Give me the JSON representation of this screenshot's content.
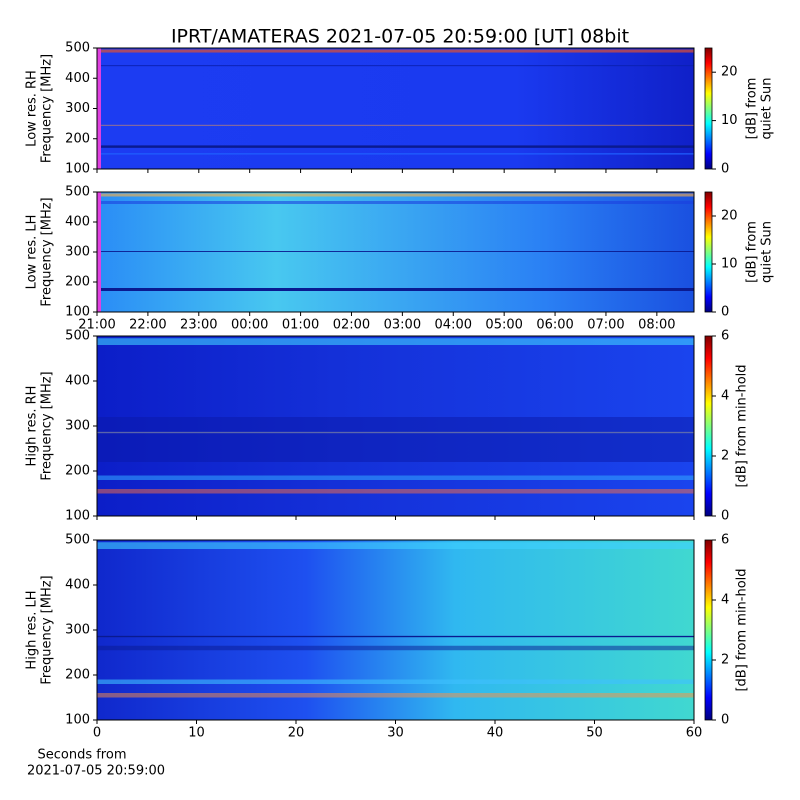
{
  "title": "IPRT/AMATERAS 2021-07-05 20:59:00 [UT]   08bit",
  "chart_data": [
    {
      "type": "heatmap",
      "ylabel": [
        "Low res. RH",
        "Frequency [MHz]"
      ],
      "ylim": [
        100,
        500
      ],
      "yticks": [
        100,
        200,
        300,
        400,
        500
      ],
      "xlim": [
        21,
        32.73
      ],
      "colormap": "jet",
      "clim": [
        0,
        25
      ],
      "cticks": [
        0,
        10,
        20
      ],
      "colorbar_label": [
        "[dB] from",
        "quiet Sun"
      ]
    },
    {
      "type": "heatmap",
      "ylabel": [
        "Low res. LH",
        "Frequency [MHz]"
      ],
      "ylim": [
        100,
        500
      ],
      "yticks": [
        100,
        200,
        300,
        400,
        500
      ],
      "xlim": [
        21,
        32.73
      ],
      "xticks": [
        {
          "value": 21,
          "label": "21:00"
        },
        {
          "value": 22,
          "label": "22:00"
        },
        {
          "value": 23,
          "label": "23:00"
        },
        {
          "value": 24,
          "label": "00:00"
        },
        {
          "value": 25,
          "label": "01:00"
        },
        {
          "value": 26,
          "label": "02:00"
        },
        {
          "value": 27,
          "label": "03:00"
        },
        {
          "value": 28,
          "label": "04:00"
        },
        {
          "value": 29,
          "label": "05:00"
        },
        {
          "value": 30,
          "label": "06:00"
        },
        {
          "value": 31,
          "label": "07:00"
        },
        {
          "value": 32,
          "label": "08:00"
        }
      ],
      "colormap": "jet",
      "clim": [
        0,
        25
      ],
      "cticks": [
        0,
        10,
        20
      ],
      "colorbar_label": [
        "[dB] from",
        "quiet Sun"
      ]
    },
    {
      "type": "heatmap",
      "ylabel": [
        "High res. RH",
        "Frequency [MHz]"
      ],
      "ylim": [
        100,
        500
      ],
      "yticks": [
        100,
        200,
        300,
        400,
        500
      ],
      "xlim": [
        0,
        60
      ],
      "colormap": "jet",
      "clim": [
        0,
        6
      ],
      "cticks": [
        0,
        2,
        4,
        6
      ],
      "colorbar_label": [
        "[dB] from min-hold"
      ]
    },
    {
      "type": "heatmap",
      "ylabel": [
        "High res. LH",
        "Frequency [MHz]"
      ],
      "ylim": [
        100,
        500
      ],
      "yticks": [
        100,
        200,
        300,
        400,
        500
      ],
      "xlim": [
        0,
        60
      ],
      "xticks": [
        0,
        10,
        20,
        30,
        40,
        50,
        60
      ],
      "xlabel": [
        "Seconds from",
        "2021-07-05 20:59:00"
      ],
      "colormap": "jet",
      "clim": [
        0,
        6
      ],
      "cticks": [
        0,
        2,
        4,
        6
      ],
      "colorbar_label": [
        "[dB] from min-hold"
      ]
    }
  ]
}
